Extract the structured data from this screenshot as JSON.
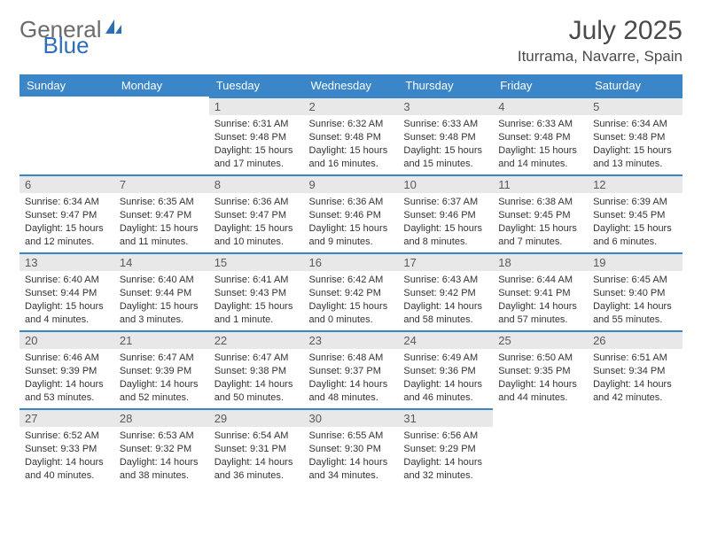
{
  "logo": {
    "part1": "General",
    "part2": "Blue"
  },
  "header": {
    "title": "July 2025",
    "location": "Iturrama, Navarre, Spain"
  },
  "colors": {
    "accent": "#3a86c8",
    "headerBg": "#3a86c8",
    "dateBarBg": "#e8e8e8",
    "logoGray": "#6b6b6b",
    "logoBlue": "#2d6fb7"
  },
  "dayNames": [
    "Sunday",
    "Monday",
    "Tuesday",
    "Wednesday",
    "Thursday",
    "Friday",
    "Saturday"
  ],
  "weeks": [
    [
      null,
      null,
      {
        "d": "1",
        "sr": "6:31 AM",
        "ss": "9:48 PM",
        "dl": "15 hours and 17 minutes."
      },
      {
        "d": "2",
        "sr": "6:32 AM",
        "ss": "9:48 PM",
        "dl": "15 hours and 16 minutes."
      },
      {
        "d": "3",
        "sr": "6:33 AM",
        "ss": "9:48 PM",
        "dl": "15 hours and 15 minutes."
      },
      {
        "d": "4",
        "sr": "6:33 AM",
        "ss": "9:48 PM",
        "dl": "15 hours and 14 minutes."
      },
      {
        "d": "5",
        "sr": "6:34 AM",
        "ss": "9:48 PM",
        "dl": "15 hours and 13 minutes."
      }
    ],
    [
      {
        "d": "6",
        "sr": "6:34 AM",
        "ss": "9:47 PM",
        "dl": "15 hours and 12 minutes."
      },
      {
        "d": "7",
        "sr": "6:35 AM",
        "ss": "9:47 PM",
        "dl": "15 hours and 11 minutes."
      },
      {
        "d": "8",
        "sr": "6:36 AM",
        "ss": "9:47 PM",
        "dl": "15 hours and 10 minutes."
      },
      {
        "d": "9",
        "sr": "6:36 AM",
        "ss": "9:46 PM",
        "dl": "15 hours and 9 minutes."
      },
      {
        "d": "10",
        "sr": "6:37 AM",
        "ss": "9:46 PM",
        "dl": "15 hours and 8 minutes."
      },
      {
        "d": "11",
        "sr": "6:38 AM",
        "ss": "9:45 PM",
        "dl": "15 hours and 7 minutes."
      },
      {
        "d": "12",
        "sr": "6:39 AM",
        "ss": "9:45 PM",
        "dl": "15 hours and 6 minutes."
      }
    ],
    [
      {
        "d": "13",
        "sr": "6:40 AM",
        "ss": "9:44 PM",
        "dl": "15 hours and 4 minutes."
      },
      {
        "d": "14",
        "sr": "6:40 AM",
        "ss": "9:44 PM",
        "dl": "15 hours and 3 minutes."
      },
      {
        "d": "15",
        "sr": "6:41 AM",
        "ss": "9:43 PM",
        "dl": "15 hours and 1 minute."
      },
      {
        "d": "16",
        "sr": "6:42 AM",
        "ss": "9:42 PM",
        "dl": "15 hours and 0 minutes."
      },
      {
        "d": "17",
        "sr": "6:43 AM",
        "ss": "9:42 PM",
        "dl": "14 hours and 58 minutes."
      },
      {
        "d": "18",
        "sr": "6:44 AM",
        "ss": "9:41 PM",
        "dl": "14 hours and 57 minutes."
      },
      {
        "d": "19",
        "sr": "6:45 AM",
        "ss": "9:40 PM",
        "dl": "14 hours and 55 minutes."
      }
    ],
    [
      {
        "d": "20",
        "sr": "6:46 AM",
        "ss": "9:39 PM",
        "dl": "14 hours and 53 minutes."
      },
      {
        "d": "21",
        "sr": "6:47 AM",
        "ss": "9:39 PM",
        "dl": "14 hours and 52 minutes."
      },
      {
        "d": "22",
        "sr": "6:47 AM",
        "ss": "9:38 PM",
        "dl": "14 hours and 50 minutes."
      },
      {
        "d": "23",
        "sr": "6:48 AM",
        "ss": "9:37 PM",
        "dl": "14 hours and 48 minutes."
      },
      {
        "d": "24",
        "sr": "6:49 AM",
        "ss": "9:36 PM",
        "dl": "14 hours and 46 minutes."
      },
      {
        "d": "25",
        "sr": "6:50 AM",
        "ss": "9:35 PM",
        "dl": "14 hours and 44 minutes."
      },
      {
        "d": "26",
        "sr": "6:51 AM",
        "ss": "9:34 PM",
        "dl": "14 hours and 42 minutes."
      }
    ],
    [
      {
        "d": "27",
        "sr": "6:52 AM",
        "ss": "9:33 PM",
        "dl": "14 hours and 40 minutes."
      },
      {
        "d": "28",
        "sr": "6:53 AM",
        "ss": "9:32 PM",
        "dl": "14 hours and 38 minutes."
      },
      {
        "d": "29",
        "sr": "6:54 AM",
        "ss": "9:31 PM",
        "dl": "14 hours and 36 minutes."
      },
      {
        "d": "30",
        "sr": "6:55 AM",
        "ss": "9:30 PM",
        "dl": "14 hours and 34 minutes."
      },
      {
        "d": "31",
        "sr": "6:56 AM",
        "ss": "9:29 PM",
        "dl": "14 hours and 32 minutes."
      },
      null,
      null
    ]
  ],
  "labels": {
    "sunrise": "Sunrise: ",
    "sunset": "Sunset: ",
    "daylight": "Daylight: "
  }
}
